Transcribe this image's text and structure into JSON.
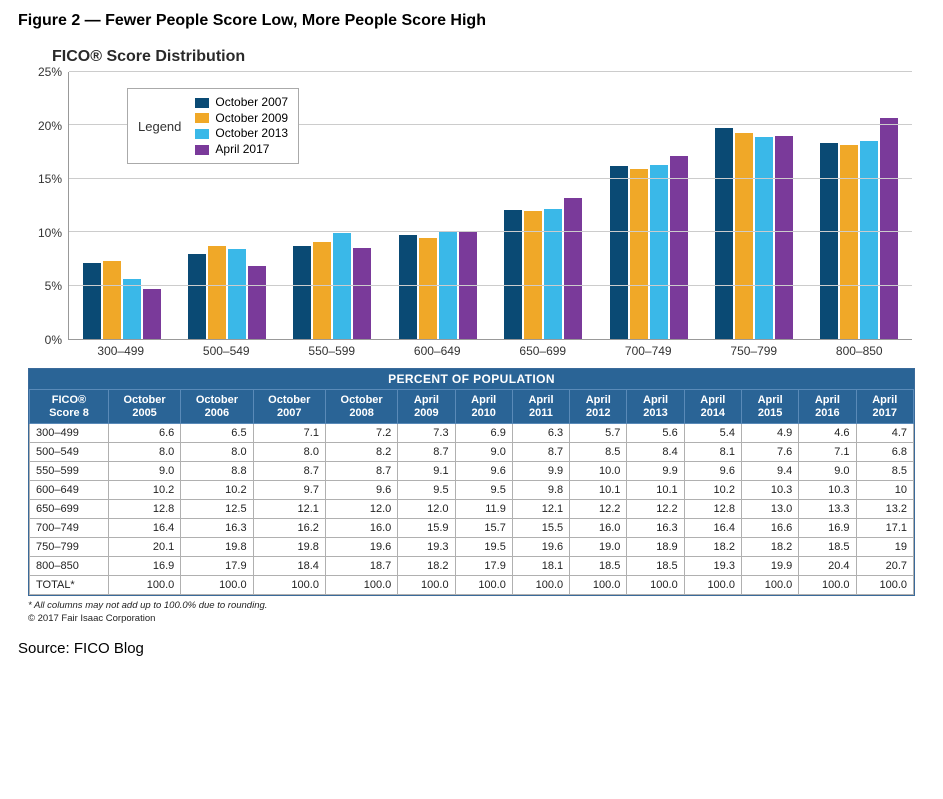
{
  "figure_label": "Figure 2 — Fewer People Score Low, More People Score High",
  "chart": {
    "type": "bar",
    "title": "FICO® Score Distribution",
    "categories": [
      "300–499",
      "500–549",
      "550–599",
      "600–649",
      "650–699",
      "700–749",
      "750–799",
      "800–850"
    ],
    "ylim_max": 25,
    "yticks": [
      0,
      5,
      10,
      15,
      20,
      25
    ],
    "ytick_labels": [
      "0%",
      "5%",
      "10%",
      "15%",
      "20%",
      "25%"
    ],
    "grid_color": "#cccccc",
    "axis_color": "#999999",
    "background_color": "#ffffff",
    "series": [
      {
        "label": "October 2007",
        "color": "#0a4a74",
        "values": [
          7.1,
          8.0,
          8.7,
          9.7,
          12.1,
          16.2,
          19.8,
          18.4
        ]
      },
      {
        "label": "October 2009",
        "color": "#f0a828",
        "values": [
          7.3,
          8.7,
          9.1,
          9.5,
          12.0,
          15.9,
          19.3,
          18.2
        ]
      },
      {
        "label": "October 2013",
        "color": "#3ab8e8",
        "values": [
          5.6,
          8.4,
          9.9,
          10.1,
          12.2,
          16.3,
          18.9,
          18.5
        ]
      },
      {
        "label": "April 2017",
        "color": "#7a3a9a",
        "values": [
          4.7,
          6.8,
          8.5,
          10.0,
          13.2,
          17.1,
          19.0,
          20.7
        ]
      }
    ],
    "legend_title": "Legend"
  },
  "table": {
    "banner": "PERCENT OF POPULATION",
    "row_head_label": "FICO®\nScore 8",
    "columns": [
      "October\n2005",
      "October\n2006",
      "October\n2007",
      "October\n2008",
      "April\n2009",
      "April\n2010",
      "April\n2011",
      "April\n2012",
      "April\n2013",
      "April\n2014",
      "April\n2015",
      "April\n2016",
      "April\n2017"
    ],
    "rows": [
      {
        "label": "300–499",
        "cells": [
          "6.6",
          "6.5",
          "7.1",
          "7.2",
          "7.3",
          "6.9",
          "6.3",
          "5.7",
          "5.6",
          "5.4",
          "4.9",
          "4.6",
          "4.7"
        ]
      },
      {
        "label": "500–549",
        "cells": [
          "8.0",
          "8.0",
          "8.0",
          "8.2",
          "8.7",
          "9.0",
          "8.7",
          "8.5",
          "8.4",
          "8.1",
          "7.6",
          "7.1",
          "6.8"
        ]
      },
      {
        "label": "550–599",
        "cells": [
          "9.0",
          "8.8",
          "8.7",
          "8.7",
          "9.1",
          "9.6",
          "9.9",
          "10.0",
          "9.9",
          "9.6",
          "9.4",
          "9.0",
          "8.5"
        ]
      },
      {
        "label": "600–649",
        "cells": [
          "10.2",
          "10.2",
          "9.7",
          "9.6",
          "9.5",
          "9.5",
          "9.8",
          "10.1",
          "10.1",
          "10.2",
          "10.3",
          "10.3",
          "10"
        ]
      },
      {
        "label": "650–699",
        "cells": [
          "12.8",
          "12.5",
          "12.1",
          "12.0",
          "12.0",
          "11.9",
          "12.1",
          "12.2",
          "12.2",
          "12.8",
          "13.0",
          "13.3",
          "13.2"
        ]
      },
      {
        "label": "700–749",
        "cells": [
          "16.4",
          "16.3",
          "16.2",
          "16.0",
          "15.9",
          "15.7",
          "15.5",
          "16.0",
          "16.3",
          "16.4",
          "16.6",
          "16.9",
          "17.1"
        ]
      },
      {
        "label": "750–799",
        "cells": [
          "20.1",
          "19.8",
          "19.8",
          "19.6",
          "19.3",
          "19.5",
          "19.6",
          "19.0",
          "18.9",
          "18.2",
          "18.2",
          "18.5",
          "19"
        ]
      },
      {
        "label": "800–850",
        "cells": [
          "16.9",
          "17.9",
          "18.4",
          "18.7",
          "18.2",
          "17.9",
          "18.1",
          "18.5",
          "18.5",
          "19.3",
          "19.9",
          "20.4",
          "20.7"
        ]
      },
      {
        "label": "TOTAL*",
        "cells": [
          "100.0",
          "100.0",
          "100.0",
          "100.0",
          "100.0",
          "100.0",
          "100.0",
          "100.0",
          "100.0",
          "100.0",
          "100.0",
          "100.0",
          "100.0"
        ]
      }
    ]
  },
  "footnote1": "* All columns may not add up to 100.0% due to rounding.",
  "footnote2": "© 2017 Fair Isaac Corporation",
  "source_line": "Source: FICO Blog"
}
